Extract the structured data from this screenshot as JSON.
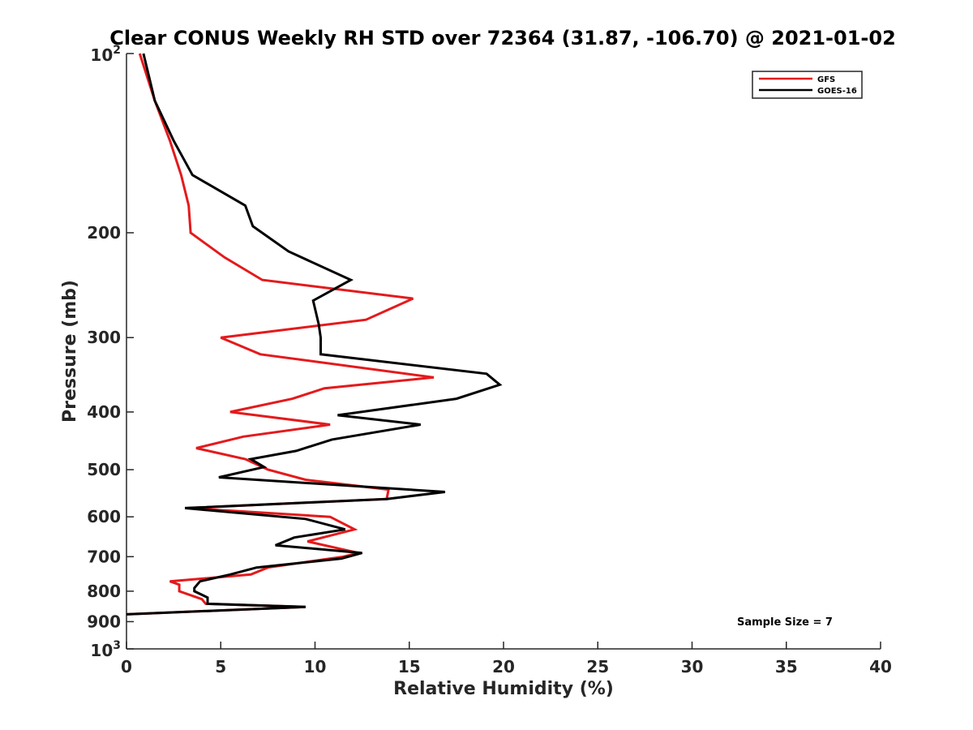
{
  "chart_data": {
    "type": "line",
    "title": "Clear CONUS Weekly RH STD over 72364 (31.87, -106.70) @ 2021-01-02",
    "xlabel": "Relative Humidity (%)",
    "ylabel": "Pressure (mb)",
    "xlim": [
      0,
      40
    ],
    "ylim": [
      100,
      1000
    ],
    "y_scale": "log",
    "y_reversed": true,
    "x_ticks": [
      "0",
      "5",
      "10",
      "15",
      "20",
      "25",
      "30",
      "35",
      "40"
    ],
    "y_ticks": [
      {
        "value": 100,
        "base": "10",
        "exp": "2"
      },
      {
        "value": 200,
        "label": "200"
      },
      {
        "value": 300,
        "label": "300"
      },
      {
        "value": 400,
        "label": "400"
      },
      {
        "value": 500,
        "label": "500"
      },
      {
        "value": 600,
        "label": "600"
      },
      {
        "value": 700,
        "label": "700"
      },
      {
        "value": 800,
        "label": "800"
      },
      {
        "value": 900,
        "label": "900"
      },
      {
        "value": 1000,
        "base": "10",
        "exp": "3"
      }
    ],
    "grid": false,
    "legend_position": "top-right",
    "annotation": "Sample Size = 7",
    "series": [
      {
        "name": "GFS",
        "color": "#e41a1c",
        "points": [
          [
            0.7,
            100
          ],
          [
            1.5,
            120
          ],
          [
            2.3,
            140
          ],
          [
            2.9,
            160
          ],
          [
            3.3,
            180
          ],
          [
            3.4,
            200
          ],
          [
            5.2,
            220
          ],
          [
            7.2,
            240
          ],
          [
            15.2,
            258
          ],
          [
            12.7,
            280
          ],
          [
            5.0,
            300
          ],
          [
            7.1,
            320
          ],
          [
            16.3,
            350
          ],
          [
            10.5,
            365
          ],
          [
            8.8,
            380
          ],
          [
            5.5,
            400
          ],
          [
            10.8,
            420
          ],
          [
            6.2,
            440
          ],
          [
            3.7,
            460
          ],
          [
            6.3,
            480
          ],
          [
            7.5,
            500
          ],
          [
            9.5,
            520
          ],
          [
            13.9,
            540
          ],
          [
            13.8,
            560
          ],
          [
            3.3,
            580
          ],
          [
            10.8,
            600
          ],
          [
            12.1,
            630
          ],
          [
            9.6,
            660
          ],
          [
            12.3,
            690
          ],
          [
            11.5,
            700
          ],
          [
            7.5,
            730
          ],
          [
            6.6,
            750
          ],
          [
            2.3,
            770
          ],
          [
            2.8,
            780
          ],
          [
            2.8,
            800
          ],
          [
            4.0,
            825
          ],
          [
            4.2,
            840
          ],
          [
            9.5,
            850
          ],
          [
            0.0,
            875
          ]
        ]
      },
      {
        "name": "GOES-16",
        "color": "#000000",
        "points": [
          [
            0.9,
            100
          ],
          [
            1.5,
            120
          ],
          [
            2.5,
            140
          ],
          [
            3.5,
            160
          ],
          [
            6.3,
            180
          ],
          [
            6.7,
            195
          ],
          [
            8.6,
            215
          ],
          [
            11.9,
            240
          ],
          [
            9.9,
            260
          ],
          [
            10.2,
            285
          ],
          [
            10.3,
            300
          ],
          [
            10.3,
            320
          ],
          [
            19.1,
            345
          ],
          [
            19.8,
            360
          ],
          [
            17.5,
            380
          ],
          [
            11.2,
            405
          ],
          [
            15.6,
            420
          ],
          [
            10.9,
            445
          ],
          [
            9.0,
            465
          ],
          [
            6.6,
            480
          ],
          [
            7.3,
            495
          ],
          [
            4.9,
            515
          ],
          [
            16.9,
            545
          ],
          [
            13.8,
            560
          ],
          [
            3.1,
            580
          ],
          [
            9.5,
            605
          ],
          [
            11.6,
            630
          ],
          [
            8.9,
            650
          ],
          [
            7.9,
            670
          ],
          [
            12.5,
            690
          ],
          [
            11.4,
            705
          ],
          [
            6.9,
            730
          ],
          [
            5.5,
            750
          ],
          [
            3.9,
            770
          ],
          [
            3.6,
            790
          ],
          [
            3.6,
            800
          ],
          [
            4.3,
            820
          ],
          [
            4.3,
            840
          ],
          [
            9.5,
            850
          ],
          [
            0.0,
            875
          ]
        ]
      }
    ]
  }
}
